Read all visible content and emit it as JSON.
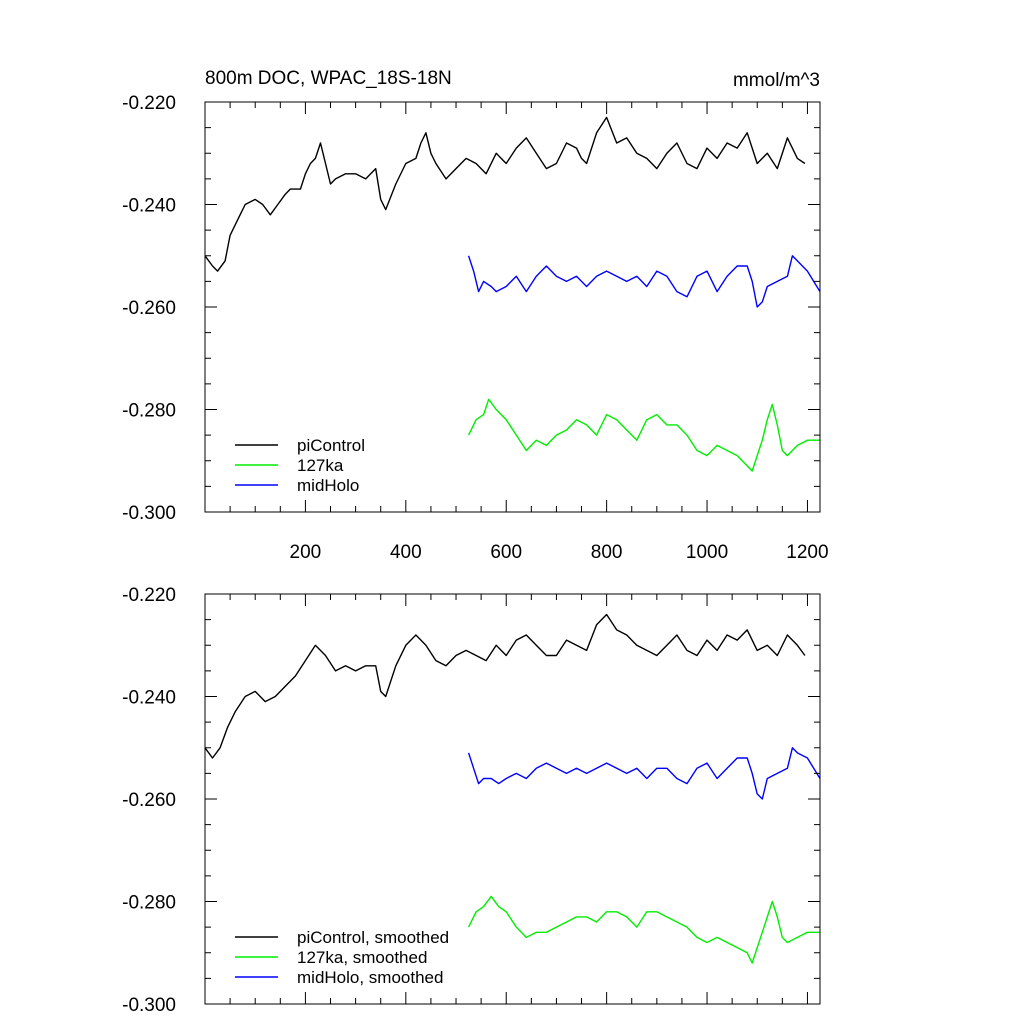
{
  "figure": {
    "title_left": "800m DOC, WPAC_18S-18N",
    "title_right": "mmol/m^3"
  },
  "chart_data": [
    {
      "type": "line",
      "panel": "top",
      "xlim": [
        0,
        1225
      ],
      "ylim": [
        -0.3,
        -0.22
      ],
      "yticks": [
        -0.22,
        -0.24,
        -0.26,
        -0.28,
        -0.3
      ],
      "ytick_labels": [
        "-0.220",
        "-0.240",
        "-0.260",
        "-0.280",
        "-0.300"
      ],
      "xticks": [
        200,
        400,
        600,
        800,
        1000,
        1200
      ],
      "xtick_labels": [
        "200",
        "400",
        "600",
        "800",
        "1000",
        "1200"
      ],
      "legend_position": "bottom-left",
      "series": [
        {
          "name": "piControl",
          "color": "#000000",
          "x": [
            0,
            15,
            25,
            40,
            50,
            70,
            80,
            100,
            115,
            130,
            145,
            160,
            170,
            190,
            200,
            210,
            220,
            230,
            240,
            250,
            260,
            280,
            300,
            320,
            340,
            350,
            360,
            380,
            400,
            420,
            430,
            440,
            450,
            460,
            480,
            500,
            520,
            540,
            560,
            580,
            600,
            620,
            640,
            660,
            680,
            700,
            720,
            740,
            750,
            760,
            780,
            800,
            820,
            840,
            860,
            880,
            900,
            920,
            940,
            960,
            980,
            1000,
            1020,
            1040,
            1060,
            1080,
            1100,
            1120,
            1140,
            1160,
            1180,
            1195
          ],
          "y": [
            -0.25,
            -0.252,
            -0.253,
            -0.251,
            -0.246,
            -0.242,
            -0.24,
            -0.239,
            -0.24,
            -0.242,
            -0.24,
            -0.238,
            -0.237,
            -0.237,
            -0.234,
            -0.232,
            -0.231,
            -0.228,
            -0.232,
            -0.236,
            -0.235,
            -0.234,
            -0.234,
            -0.235,
            -0.233,
            -0.239,
            -0.241,
            -0.236,
            -0.232,
            -0.231,
            -0.228,
            -0.226,
            -0.23,
            -0.232,
            -0.235,
            -0.233,
            -0.231,
            -0.232,
            -0.234,
            -0.23,
            -0.232,
            -0.229,
            -0.227,
            -0.23,
            -0.233,
            -0.232,
            -0.228,
            -0.229,
            -0.231,
            -0.232,
            -0.226,
            -0.223,
            -0.228,
            -0.227,
            -0.23,
            -0.231,
            -0.233,
            -0.23,
            -0.228,
            -0.232,
            -0.233,
            -0.229,
            -0.231,
            -0.228,
            -0.229,
            -0.226,
            -0.232,
            -0.23,
            -0.233,
            -0.227,
            -0.231,
            -0.232
          ]
        },
        {
          "name": "127ka",
          "color": "#00ee00",
          "x": [
            525,
            540,
            555,
            565,
            580,
            600,
            620,
            640,
            660,
            680,
            700,
            720,
            740,
            760,
            780,
            800,
            820,
            840,
            860,
            880,
            900,
            920,
            940,
            960,
            980,
            1000,
            1020,
            1040,
            1060,
            1080,
            1090,
            1100,
            1110,
            1120,
            1130,
            1140,
            1150,
            1160,
            1180,
            1200,
            1225
          ],
          "y": [
            -0.285,
            -0.282,
            -0.281,
            -0.278,
            -0.28,
            -0.282,
            -0.285,
            -0.288,
            -0.286,
            -0.287,
            -0.285,
            -0.284,
            -0.282,
            -0.283,
            -0.285,
            -0.281,
            -0.282,
            -0.284,
            -0.286,
            -0.282,
            -0.281,
            -0.283,
            -0.283,
            -0.285,
            -0.288,
            -0.289,
            -0.287,
            -0.288,
            -0.289,
            -0.291,
            -0.292,
            -0.289,
            -0.286,
            -0.282,
            -0.279,
            -0.283,
            -0.288,
            -0.289,
            -0.287,
            -0.286,
            -0.286
          ]
        },
        {
          "name": "midHolo",
          "color": "#0000ff",
          "x": [
            525,
            535,
            545,
            555,
            570,
            580,
            600,
            620,
            640,
            660,
            680,
            700,
            720,
            740,
            760,
            780,
            800,
            820,
            840,
            860,
            880,
            900,
            920,
            940,
            960,
            980,
            1000,
            1020,
            1040,
            1060,
            1080,
            1090,
            1100,
            1110,
            1120,
            1140,
            1160,
            1170,
            1180,
            1200,
            1225
          ],
          "y": [
            -0.25,
            -0.253,
            -0.257,
            -0.255,
            -0.256,
            -0.257,
            -0.256,
            -0.254,
            -0.257,
            -0.254,
            -0.252,
            -0.254,
            -0.255,
            -0.254,
            -0.256,
            -0.254,
            -0.253,
            -0.254,
            -0.255,
            -0.254,
            -0.256,
            -0.253,
            -0.254,
            -0.257,
            -0.258,
            -0.254,
            -0.253,
            -0.257,
            -0.254,
            -0.252,
            -0.252,
            -0.255,
            -0.26,
            -0.259,
            -0.256,
            -0.255,
            -0.254,
            -0.25,
            -0.251,
            -0.253,
            -0.257
          ]
        }
      ]
    },
    {
      "type": "line",
      "panel": "bottom",
      "xlim": [
        0,
        1225
      ],
      "ylim": [
        -0.3,
        -0.22
      ],
      "yticks": [
        -0.22,
        -0.24,
        -0.26,
        -0.28,
        -0.3
      ],
      "ytick_labels": [
        "-0.220",
        "-0.240",
        "-0.260",
        "-0.280",
        "-0.300"
      ],
      "legend_position": "bottom-left",
      "series": [
        {
          "name": "piControl, smoothed",
          "color": "#000000",
          "x": [
            0,
            15,
            30,
            45,
            60,
            80,
            100,
            120,
            140,
            160,
            180,
            200,
            220,
            240,
            260,
            280,
            300,
            320,
            340,
            350,
            360,
            380,
            400,
            420,
            440,
            460,
            480,
            500,
            520,
            540,
            560,
            580,
            600,
            620,
            640,
            660,
            680,
            700,
            720,
            740,
            760,
            780,
            800,
            820,
            840,
            860,
            880,
            900,
            920,
            940,
            960,
            980,
            1000,
            1020,
            1040,
            1060,
            1080,
            1100,
            1120,
            1140,
            1160,
            1180,
            1195
          ],
          "y": [
            -0.25,
            -0.252,
            -0.25,
            -0.246,
            -0.243,
            -0.24,
            -0.239,
            -0.241,
            -0.24,
            -0.238,
            -0.236,
            -0.233,
            -0.23,
            -0.232,
            -0.235,
            -0.234,
            -0.235,
            -0.234,
            -0.234,
            -0.239,
            -0.24,
            -0.234,
            -0.23,
            -0.228,
            -0.23,
            -0.233,
            -0.234,
            -0.232,
            -0.231,
            -0.232,
            -0.233,
            -0.23,
            -0.232,
            -0.229,
            -0.228,
            -0.23,
            -0.232,
            -0.232,
            -0.229,
            -0.23,
            -0.231,
            -0.226,
            -0.224,
            -0.227,
            -0.228,
            -0.23,
            -0.231,
            -0.232,
            -0.23,
            -0.228,
            -0.231,
            -0.232,
            -0.229,
            -0.231,
            -0.228,
            -0.229,
            -0.227,
            -0.231,
            -0.23,
            -0.232,
            -0.228,
            -0.23,
            -0.232
          ]
        },
        {
          "name": "127ka, smoothed",
          "color": "#00ee00",
          "x": [
            525,
            540,
            555,
            570,
            585,
            600,
            620,
            640,
            660,
            680,
            700,
            720,
            740,
            760,
            780,
            800,
            820,
            840,
            860,
            880,
            900,
            920,
            940,
            960,
            980,
            1000,
            1020,
            1040,
            1060,
            1080,
            1090,
            1100,
            1110,
            1120,
            1130,
            1140,
            1150,
            1160,
            1180,
            1200,
            1225
          ],
          "y": [
            -0.285,
            -0.282,
            -0.281,
            -0.279,
            -0.281,
            -0.282,
            -0.285,
            -0.287,
            -0.286,
            -0.286,
            -0.285,
            -0.284,
            -0.283,
            -0.283,
            -0.284,
            -0.282,
            -0.282,
            -0.283,
            -0.285,
            -0.282,
            -0.282,
            -0.283,
            -0.284,
            -0.285,
            -0.287,
            -0.288,
            -0.287,
            -0.288,
            -0.289,
            -0.29,
            -0.292,
            -0.289,
            -0.286,
            -0.283,
            -0.28,
            -0.283,
            -0.287,
            -0.288,
            -0.287,
            -0.286,
            -0.286
          ]
        },
        {
          "name": "midHolo, smoothed",
          "color": "#0000ff",
          "x": [
            525,
            535,
            545,
            555,
            570,
            585,
            600,
            620,
            640,
            660,
            680,
            700,
            720,
            740,
            760,
            780,
            800,
            820,
            840,
            860,
            880,
            900,
            920,
            940,
            960,
            980,
            1000,
            1020,
            1040,
            1060,
            1080,
            1090,
            1100,
            1110,
            1120,
            1140,
            1160,
            1170,
            1180,
            1200,
            1225
          ],
          "y": [
            -0.251,
            -0.254,
            -0.257,
            -0.256,
            -0.256,
            -0.257,
            -0.256,
            -0.255,
            -0.256,
            -0.254,
            -0.253,
            -0.254,
            -0.255,
            -0.254,
            -0.255,
            -0.254,
            -0.253,
            -0.254,
            -0.255,
            -0.254,
            -0.256,
            -0.254,
            -0.254,
            -0.256,
            -0.257,
            -0.254,
            -0.253,
            -0.256,
            -0.254,
            -0.252,
            -0.252,
            -0.255,
            -0.259,
            -0.26,
            -0.256,
            -0.255,
            -0.254,
            -0.25,
            -0.251,
            -0.252,
            -0.256
          ]
        }
      ]
    }
  ]
}
